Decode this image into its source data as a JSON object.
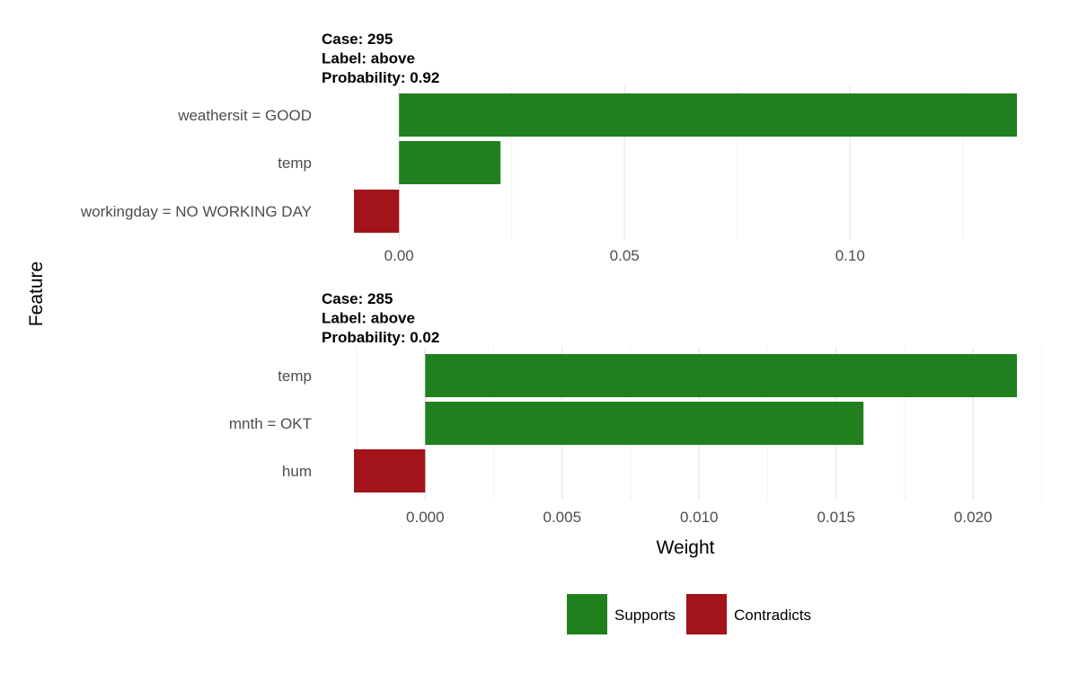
{
  "chart_data": {
    "type": "bar",
    "orientation": "horizontal",
    "xlabel": "Weight",
    "ylabel": "Feature",
    "legend": {
      "placement": "bottom",
      "entries": [
        {
          "label": "Supports",
          "color": "#21801e"
        },
        {
          "label": "Contradicts",
          "color": "#a2131a"
        }
      ]
    },
    "colors": {
      "Supports": "#21801e",
      "Contradicts": "#a2131a"
    },
    "panels": [
      {
        "title_lines": [
          "Case: 295",
          "Label: above",
          "Probability: 0.92"
        ],
        "xlim": [
          -0.01,
          0.137
        ],
        "ticks": [
          {
            "value": 0.0,
            "label": "0.00"
          },
          {
            "value": 0.05,
            "label": "0.05"
          },
          {
            "value": 0.1,
            "label": "0.10"
          }
        ],
        "minor_ticks": [
          0.025,
          0.075,
          0.125
        ],
        "bars": [
          {
            "feature": "weathersit = GOOD",
            "weight": 0.137,
            "type": "Supports"
          },
          {
            "feature": "temp",
            "weight": 0.0225,
            "type": "Supports"
          },
          {
            "feature": "workingday = NO WORKING DAY",
            "weight": -0.01,
            "type": "Contradicts"
          }
        ]
      },
      {
        "title_lines": [
          "Case: 285",
          "Label: above",
          "Probability: 0.02"
        ],
        "xlim": [
          -0.0026,
          0.0216
        ],
        "ticks": [
          {
            "value": 0.0,
            "label": "0.000"
          },
          {
            "value": 0.005,
            "label": "0.005"
          },
          {
            "value": 0.01,
            "label": "0.010"
          },
          {
            "value": 0.015,
            "label": "0.015"
          },
          {
            "value": 0.02,
            "label": "0.020"
          }
        ],
        "minor_ticks": [
          -0.0025,
          0.0025,
          0.0075,
          0.0125,
          0.0175,
          0.0225
        ],
        "bars": [
          {
            "feature": "temp",
            "weight": 0.0216,
            "type": "Supports"
          },
          {
            "feature": "mnth = OKT",
            "weight": 0.016,
            "type": "Supports"
          },
          {
            "feature": "hum",
            "weight": -0.0026,
            "type": "Contradicts"
          }
        ]
      }
    ]
  }
}
